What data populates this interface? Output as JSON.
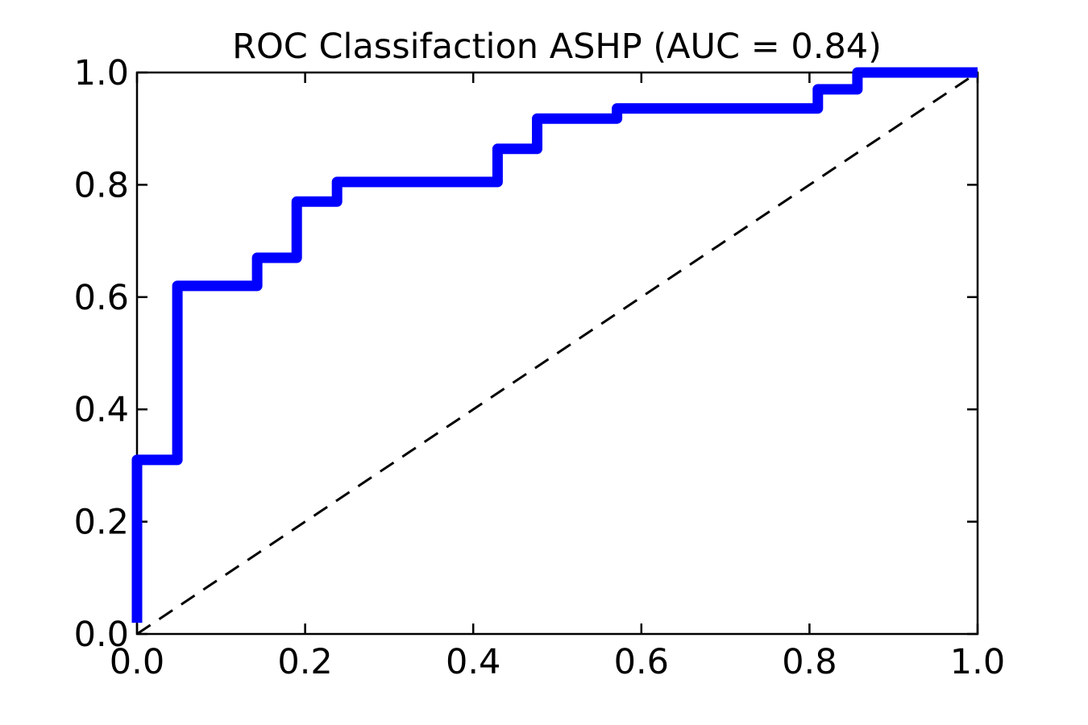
{
  "chart_data": {
    "type": "line",
    "title": "ROC Classifaction ASHP (AUC = 0.84)",
    "auc": 0.84,
    "xlabel": "",
    "ylabel": "",
    "xlim": [
      0.0,
      1.0
    ],
    "ylim": [
      0.0,
      1.0
    ],
    "grid": false,
    "legend": "none",
    "xticks": {
      "values": [
        0.0,
        0.2,
        0.4,
        0.6,
        0.8,
        1.0
      ],
      "labels": [
        "0.0",
        "0.2",
        "0.4",
        "0.6",
        "0.8",
        "1.0"
      ]
    },
    "yticks": {
      "values": [
        0.0,
        0.2,
        0.4,
        0.6,
        0.8,
        1.0
      ],
      "labels": [
        "0.0",
        "0.2",
        "0.4",
        "0.6",
        "0.8",
        "1.0"
      ]
    },
    "series": [
      {
        "name": "ROC curve",
        "kind": "step-curve",
        "color": "#0000ff",
        "line_width": 13,
        "line_style": "solid",
        "points": [
          [
            0.0,
            0.02
          ],
          [
            0.0,
            0.31
          ],
          [
            0.048,
            0.31
          ],
          [
            0.048,
            0.62
          ],
          [
            0.143,
            0.62
          ],
          [
            0.143,
            0.67
          ],
          [
            0.19,
            0.67
          ],
          [
            0.19,
            0.77
          ],
          [
            0.238,
            0.77
          ],
          [
            0.238,
            0.805
          ],
          [
            0.429,
            0.805
          ],
          [
            0.429,
            0.864
          ],
          [
            0.476,
            0.864
          ],
          [
            0.476,
            0.918
          ],
          [
            0.571,
            0.918
          ],
          [
            0.571,
            0.936
          ],
          [
            0.81,
            0.936
          ],
          [
            0.81,
            0.97
          ],
          [
            0.857,
            0.97
          ],
          [
            0.857,
            1.0
          ],
          [
            1.0,
            1.0
          ]
        ]
      },
      {
        "name": "Chance diagonal",
        "kind": "reference-line",
        "color": "#000000",
        "line_width": 3,
        "line_style": "dashed",
        "dash": [
          20,
          13
        ],
        "points": [
          [
            0.0,
            0.0
          ],
          [
            1.0,
            1.0
          ]
        ]
      }
    ],
    "axis": {
      "spine_color": "#000000",
      "spine_width": 2.5,
      "tick_length": 13,
      "tick_direction": "in",
      "ticks_on_all_sides": true
    }
  }
}
